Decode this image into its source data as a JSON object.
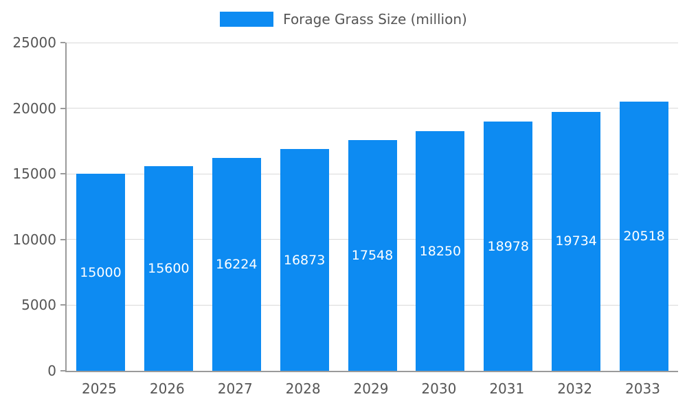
{
  "chart_data": {
    "type": "bar",
    "title": "",
    "legend": "Forage Grass Size (million)",
    "legend_position": "top",
    "categories": [
      "2025",
      "2026",
      "2027",
      "2028",
      "2029",
      "2030",
      "2031",
      "2032",
      "2033"
    ],
    "values": [
      15000,
      15600,
      16224,
      16873,
      17548,
      18250,
      18978,
      19734,
      20518
    ],
    "xlabel": "",
    "ylabel": "",
    "ylim": [
      0,
      25000
    ],
    "yticks": [
      0,
      5000,
      10000,
      15000,
      20000,
      25000
    ],
    "grid": "horizontal",
    "bar_color": "#0d8bf2",
    "bar_label_color": "#ffffff",
    "axis_text_color": "#555555",
    "grid_color": "#d9d9d9",
    "axis_line_color": "#9a9a9a"
  }
}
